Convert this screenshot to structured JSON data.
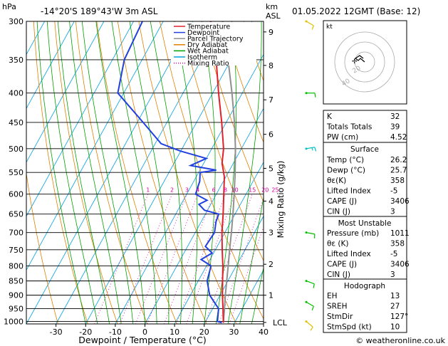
{
  "header": {
    "unit_label": "hPa",
    "location": "-14°20'S  189°43'W  3m  ASL",
    "km_label": "km",
    "asl_label": "ASL",
    "datetime": "01.05.2022  12GMT  (Base: 12)"
  },
  "chart_data": {
    "type": "line",
    "xlabel": "Dewpoint / Temperature (°C)",
    "ylabel_right": "Mixing Ratio (g/kg)",
    "x_ticks": [
      -30,
      -20,
      -10,
      0,
      10,
      20,
      30,
      40
    ],
    "x_range": [
      -40,
      40
    ],
    "pressure_levels": [
      300,
      350,
      400,
      450,
      500,
      550,
      600,
      650,
      700,
      750,
      800,
      850,
      900,
      950,
      1000
    ],
    "pressure_range": [
      300,
      1010
    ],
    "km_ticks": [
      {
        "label": "9",
        "p": 313
      },
      {
        "label": "8",
        "p": 358
      },
      {
        "label": "7",
        "p": 411
      },
      {
        "label": "6",
        "p": 472
      },
      {
        "label": "5",
        "p": 541
      },
      {
        "label": "4",
        "p": 617
      },
      {
        "label": "3",
        "p": 700
      },
      {
        "label": "2",
        "p": 795
      },
      {
        "label": "1",
        "p": 900
      },
      {
        "label": "LCL",
        "p": 1004
      }
    ],
    "mixing_ratio_labels": [
      "1",
      "2",
      "3",
      "4",
      "6",
      "8",
      "10",
      "15",
      "20",
      "25"
    ],
    "mixing_ratio_values": [
      1,
      2,
      3,
      4,
      6,
      8,
      10,
      15,
      20,
      25
    ],
    "legend": [
      {
        "name": "Temperature",
        "color": "#e0202a"
      },
      {
        "name": "Dewpoint",
        "color": "#2040e0"
      },
      {
        "name": "Parcel Trajectory",
        "color": "#909090"
      },
      {
        "name": "Dry Adiabat",
        "color": "#e08000"
      },
      {
        "name": "Wet Adiabat",
        "color": "#00a000"
      },
      {
        "name": "Isotherm",
        "color": "#00a0e0"
      },
      {
        "name": "Mixing Ratio",
        "color": "#e000a0"
      }
    ],
    "temperature": [
      {
        "p": 1005,
        "t": 26.2
      },
      {
        "p": 1000,
        "t": 26.0
      },
      {
        "p": 950,
        "t": 23.5
      },
      {
        "p": 900,
        "t": 20.8
      },
      {
        "p": 850,
        "t": 18.2
      },
      {
        "p": 800,
        "t": 15.5
      },
      {
        "p": 750,
        "t": 12.3
      },
      {
        "p": 700,
        "t": 9.0
      },
      {
        "p": 650,
        "t": 6.0
      },
      {
        "p": 600,
        "t": 2.5
      },
      {
        "p": 560,
        "t": -0.5
      },
      {
        "p": 530,
        "t": -3.8
      },
      {
        "p": 500,
        "t": -6.0
      },
      {
        "p": 450,
        "t": -11.5
      },
      {
        "p": 400,
        "t": -18.0
      },
      {
        "p": 350,
        "t": -25.0
      },
      {
        "p": 320,
        "t": -30.0
      },
      {
        "p": 300,
        "t": -34.0
      }
    ],
    "dewpoint": [
      {
        "p": 1005,
        "t": 25.7
      },
      {
        "p": 1000,
        "t": 24.0
      },
      {
        "p": 950,
        "t": 22.0
      },
      {
        "p": 900,
        "t": 16.5
      },
      {
        "p": 850,
        "t": 13.0
      },
      {
        "p": 800,
        "t": 11.5
      },
      {
        "p": 780,
        "t": 7.0
      },
      {
        "p": 760,
        "t": 9.5
      },
      {
        "p": 740,
        "t": 6.0
      },
      {
        "p": 700,
        "t": 6.5
      },
      {
        "p": 670,
        "t": 5.0
      },
      {
        "p": 650,
        "t": 4.5
      },
      {
        "p": 640,
        "t": -1.0
      },
      {
        "p": 625,
        "t": -4.0
      },
      {
        "p": 615,
        "t": -2.0
      },
      {
        "p": 600,
        "t": -7.0
      },
      {
        "p": 570,
        "t": -8.0
      },
      {
        "p": 550,
        "t": -9.5
      },
      {
        "p": 545,
        "t": -4.5
      },
      {
        "p": 535,
        "t": -14.0
      },
      {
        "p": 520,
        "t": -10.0
      },
      {
        "p": 505,
        "t": -20.0
      },
      {
        "p": 490,
        "t": -28.0
      },
      {
        "p": 450,
        "t": -38.0
      },
      {
        "p": 400,
        "t": -52.0
      },
      {
        "p": 350,
        "t": -56.0
      },
      {
        "p": 300,
        "t": -57.0
      }
    ],
    "parcel": [
      {
        "p": 1005,
        "t": 26.2
      },
      {
        "p": 950,
        "t": 24.0
      },
      {
        "p": 900,
        "t": 21.8
      },
      {
        "p": 850,
        "t": 19.6
      },
      {
        "p": 800,
        "t": 17.3
      },
      {
        "p": 750,
        "t": 14.8
      },
      {
        "p": 700,
        "t": 12.2
      },
      {
        "p": 650,
        "t": 9.3
      },
      {
        "p": 600,
        "t": 6.0
      },
      {
        "p": 550,
        "t": 2.3
      },
      {
        "p": 500,
        "t": -2.0
      },
      {
        "p": 450,
        "t": -7.2
      },
      {
        "p": 400,
        "t": -13.5
      },
      {
        "p": 350,
        "t": -21.0
      },
      {
        "p": 300,
        "t": -30.0
      }
    ]
  },
  "hodograph": {
    "label": "kt",
    "rings": [
      "20",
      "40"
    ]
  },
  "wind_barbs": [
    {
      "p": 300,
      "color": "#e0c000",
      "dir": 120,
      "spd": 10
    },
    {
      "p": 400,
      "color": "#00c000",
      "dir": 90,
      "spd": 10
    },
    {
      "p": 500,
      "color": "#00c0c0",
      "dir": 80,
      "spd": 15
    },
    {
      "p": 700,
      "color": "#00c000",
      "dir": 100,
      "spd": 10
    },
    {
      "p": 850,
      "color": "#00c000",
      "dir": 110,
      "spd": 10
    },
    {
      "p": 925,
      "color": "#00c000",
      "dir": 120,
      "spd": 10
    },
    {
      "p": 1000,
      "color": "#e0c000",
      "dir": 130,
      "spd": 10
    }
  ],
  "indices": [
    {
      "label": "K",
      "value": "32"
    },
    {
      "label": "Totals Totals",
      "value": "39"
    },
    {
      "label": "PW (cm)",
      "value": "4.52"
    }
  ],
  "surface": {
    "title": "Surface",
    "rows": [
      {
        "label": "Temp (°C)",
        "value": "26.2"
      },
      {
        "label": "Dewp (°C)",
        "value": "25.7"
      },
      {
        "label": "θε(K)",
        "value": "358"
      },
      {
        "label": "Lifted Index",
        "value": "-5"
      },
      {
        "label": "CAPE (J)",
        "value": "3406"
      },
      {
        "label": "CIN (J)",
        "value": "3"
      }
    ]
  },
  "most_unstable": {
    "title": "Most Unstable",
    "rows": [
      {
        "label": "Pressure (mb)",
        "value": "1011"
      },
      {
        "label": "θε (K)",
        "value": "358"
      },
      {
        "label": "Lifted Index",
        "value": "-5"
      },
      {
        "label": "CAPE (J)",
        "value": "3406"
      },
      {
        "label": "CIN (J)",
        "value": "3"
      }
    ]
  },
  "hodograph_table": {
    "title": "Hodograph",
    "rows": [
      {
        "label": "EH",
        "value": "13"
      },
      {
        "label": "SREH",
        "value": "27"
      },
      {
        "label": "StmDir",
        "value": "127°"
      },
      {
        "label": "StmSpd (kt)",
        "value": "10"
      }
    ]
  },
  "footer": "© weatheronline.co.uk"
}
